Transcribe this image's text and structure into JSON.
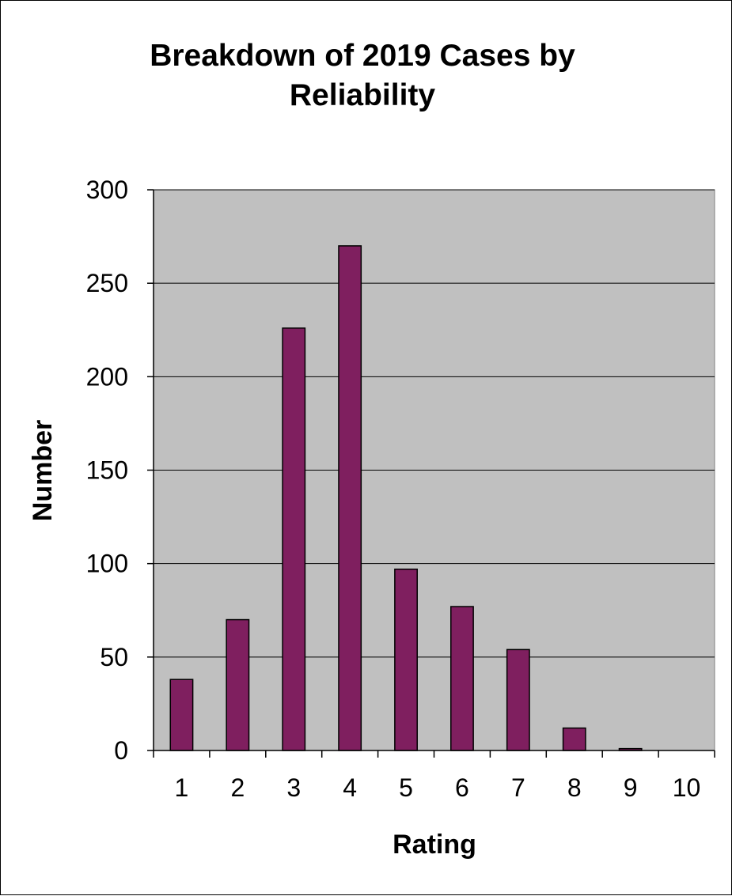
{
  "chart_data": {
    "type": "bar",
    "title_lines": [
      "Breakdown of 2019 Cases by",
      "Reliability"
    ],
    "xlabel": "Rating",
    "ylabel": "Number",
    "categories": [
      "1",
      "2",
      "3",
      "4",
      "5",
      "6",
      "7",
      "8",
      "9",
      "10"
    ],
    "values": [
      38,
      70,
      226,
      270,
      97,
      77,
      54,
      12,
      1,
      0
    ],
    "ylim": [
      0,
      300
    ],
    "yticks": [
      0,
      50,
      100,
      150,
      200,
      250,
      300
    ],
    "ytick_labels": [
      "0",
      "50",
      "100",
      "150",
      "200",
      "250",
      "300"
    ],
    "grid": "horizontal",
    "legend": "none",
    "colors": {
      "bar_fill": "#7f1f5f",
      "plot_background": "#c0c0c0",
      "gridline": "#000000"
    }
  }
}
